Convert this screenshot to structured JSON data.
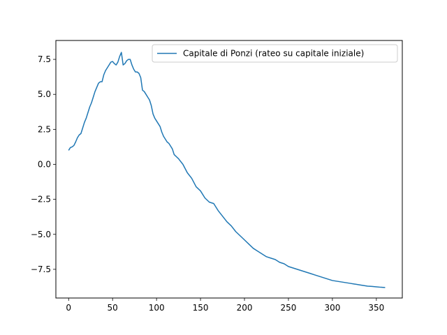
{
  "chart_data": {
    "type": "line",
    "title": "",
    "xlabel": "",
    "ylabel": "",
    "xlim": [
      -14.5,
      379.5
    ],
    "ylim": [
      -9.55,
      8.85
    ],
    "xticks": [
      0,
      50,
      100,
      150,
      200,
      250,
      300,
      350
    ],
    "xtick_labels": [
      "0",
      "50",
      "100",
      "150",
      "200",
      "250",
      "300",
      "350"
    ],
    "yticks": [
      -7.5,
      -5.0,
      -2.5,
      0.0,
      2.5,
      5.0,
      7.5
    ],
    "ytick_labels": [
      "−7.5",
      "−5.0",
      "−2.5",
      "0.0",
      "2.5",
      "5.0",
      "7.5"
    ],
    "grid": false,
    "legend_position": "upper-right",
    "series": [
      {
        "name": "Capitale di Ponzi (rateo su capitale iniziale)",
        "color": "#1f77b4",
        "x": [
          0,
          2,
          4,
          6,
          8,
          10,
          12,
          14,
          16,
          18,
          20,
          22,
          24,
          26,
          28,
          30,
          32,
          34,
          36,
          38,
          40,
          42,
          44,
          46,
          48,
          50,
          52,
          54,
          56,
          58,
          60,
          62,
          64,
          66,
          68,
          70,
          72,
          74,
          76,
          78,
          80,
          82,
          84,
          86,
          88,
          90,
          92,
          94,
          96,
          98,
          100,
          102,
          104,
          106,
          108,
          110,
          112,
          114,
          116,
          118,
          120,
          125,
          130,
          135,
          140,
          145,
          150,
          155,
          160,
          165,
          170,
          175,
          180,
          185,
          190,
          195,
          200,
          205,
          210,
          215,
          220,
          225,
          230,
          235,
          240,
          245,
          250,
          255,
          260,
          265,
          270,
          275,
          280,
          285,
          290,
          295,
          300,
          305,
          310,
          315,
          320,
          325,
          330,
          335,
          340,
          345,
          350,
          355,
          360
        ],
        "y": [
          1.0,
          1.2,
          1.25,
          1.35,
          1.6,
          1.9,
          2.1,
          2.2,
          2.6,
          3.0,
          3.3,
          3.7,
          4.1,
          4.4,
          4.8,
          5.2,
          5.5,
          5.8,
          5.9,
          5.9,
          6.4,
          6.7,
          6.9,
          7.1,
          7.3,
          7.35,
          7.2,
          7.1,
          7.3,
          7.7,
          8.0,
          7.1,
          7.2,
          7.4,
          7.5,
          7.5,
          7.1,
          6.8,
          6.6,
          6.6,
          6.5,
          6.2,
          5.3,
          5.2,
          5.0,
          4.8,
          4.6,
          4.2,
          3.6,
          3.3,
          3.1,
          2.9,
          2.7,
          2.3,
          2.0,
          1.8,
          1.6,
          1.5,
          1.3,
          1.1,
          0.7,
          0.4,
          0.0,
          -0.6,
          -1.0,
          -1.6,
          -1.9,
          -2.4,
          -2.7,
          -2.8,
          -3.3,
          -3.7,
          -4.1,
          -4.4,
          -4.8,
          -5.1,
          -5.4,
          -5.7,
          -6.0,
          -6.2,
          -6.4,
          -6.6,
          -6.7,
          -6.8,
          -7.0,
          -7.1,
          -7.3,
          -7.4,
          -7.5,
          -7.6,
          -7.7,
          -7.8,
          -7.9,
          -8.0,
          -8.1,
          -8.2,
          -8.3,
          -8.35,
          -8.4,
          -8.45,
          -8.5,
          -8.55,
          -8.6,
          -8.65,
          -8.7,
          -8.72,
          -8.75,
          -8.78,
          -8.8
        ]
      }
    ]
  }
}
